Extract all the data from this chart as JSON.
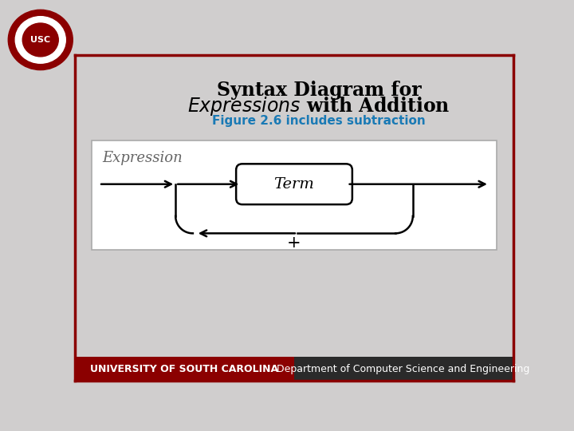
{
  "title_line1": "Syntax Diagram for",
  "title_line2": "$\\it{Expressions}$ with Addition",
  "subtitle": "Figure 2.6 includes subtraction",
  "bg_color": "#d0cece",
  "border_color": "#8B0000",
  "title_color": "#000000",
  "subtitle_color": "#1a7ab5",
  "footer_bg": "#8B0000",
  "footer_text": "UNIVERSITY OF SOUTH CAROLINA",
  "footer_text2": "Department of Computer Science and Engineering",
  "footer_color": "#ffffff",
  "footer_right_bg": "#2a2a2a",
  "diagram_edge": "#aaaaaa",
  "expression_label": "Expression",
  "term_label": "Term",
  "plus_label": "+"
}
